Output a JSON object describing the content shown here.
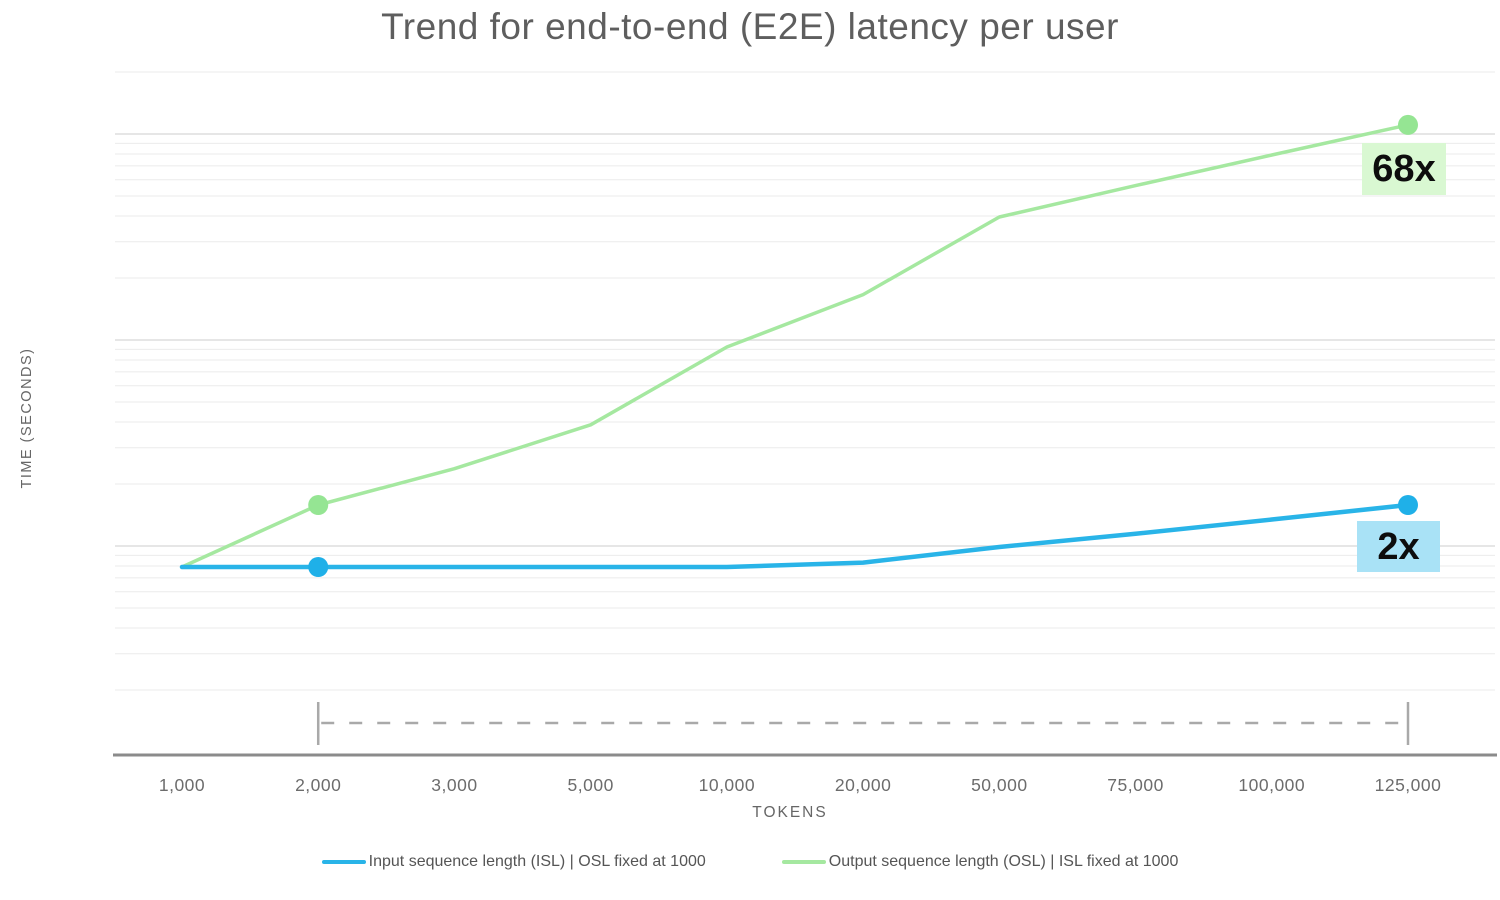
{
  "title": "Trend for end-to-end (E2E) latency per user",
  "axes": {
    "x_title": "TOKENS",
    "y_title": "TIME (SECONDS)",
    "x_tick_labels": [
      "1,000",
      "2,000",
      "3,000",
      "5,000",
      "10,000",
      "20,000",
      "50,000",
      "75,000",
      "100,000",
      "125,000"
    ],
    "y_tick_labels": [],
    "y_scale": "log (gridlines only, no tick labels)"
  },
  "legend": [
    {
      "id": "isl",
      "label": "Input sequence length (ISL) | OSL fixed at 1000",
      "color": "#29b4e8"
    },
    {
      "id": "osl",
      "label": "Output sequence length (OSL) | ISL fixed at 1000",
      "color": "#a5e8a0"
    }
  ],
  "annotations": [
    {
      "id": "osl-end",
      "label": "68x",
      "bg": "#d9f8d2",
      "series": "osl",
      "at_tokens": 125000
    },
    {
      "id": "isl-end",
      "label": "2x",
      "bg": "#a9e2f6",
      "series": "isl",
      "at_tokens": 125000
    }
  ],
  "chart_data": {
    "type": "line",
    "title": "Trend for end-to-end (E2E) latency per user",
    "xlabel": "TOKENS",
    "ylabel": "TIME (SECONDS)",
    "x_categories": [
      1000,
      2000,
      3000,
      5000,
      10000,
      20000,
      50000,
      75000,
      100000,
      125000
    ],
    "x_tick_labels": [
      "1,000",
      "2,000",
      "3,000",
      "5,000",
      "10,000",
      "20,000",
      "50,000",
      "75,000",
      "100,000",
      "125,000"
    ],
    "y_axis_note": "log scale, unlabeled; values are relative E2E latency multiples estimated from gridlines (1x at 1,000 tokens)",
    "grid": "horizontal log gridlines on",
    "legend_position": "bottom center",
    "series": [
      {
        "id": "isl",
        "name": "Input sequence length (ISL) | OSL fixed at 1000",
        "color": "#29b4e8",
        "marker_color": "#1fb0e8",
        "relative_latency": [
          1,
          1,
          1,
          1,
          1,
          1.05,
          1.25,
          1.45,
          1.7,
          2
        ],
        "markers_at_tokens": [
          2000,
          125000
        ],
        "end_annotation": "2x"
      },
      {
        "id": "osl",
        "name": "Output sequence length (OSL) | ISL fixed at 1000",
        "color": "#a5e8a0",
        "marker_color": "#95e593",
        "relative_latency": [
          1,
          2,
          3,
          4.9,
          11.7,
          21,
          50,
          71,
          100,
          140
        ],
        "markers_at_tokens": [
          2000,
          125000
        ],
        "end_annotation": "68x"
      }
    ],
    "range_bracket": {
      "from_tokens": 2000,
      "to_tokens": 125000,
      "style": "dashed",
      "color": "#a9a9a9"
    }
  }
}
